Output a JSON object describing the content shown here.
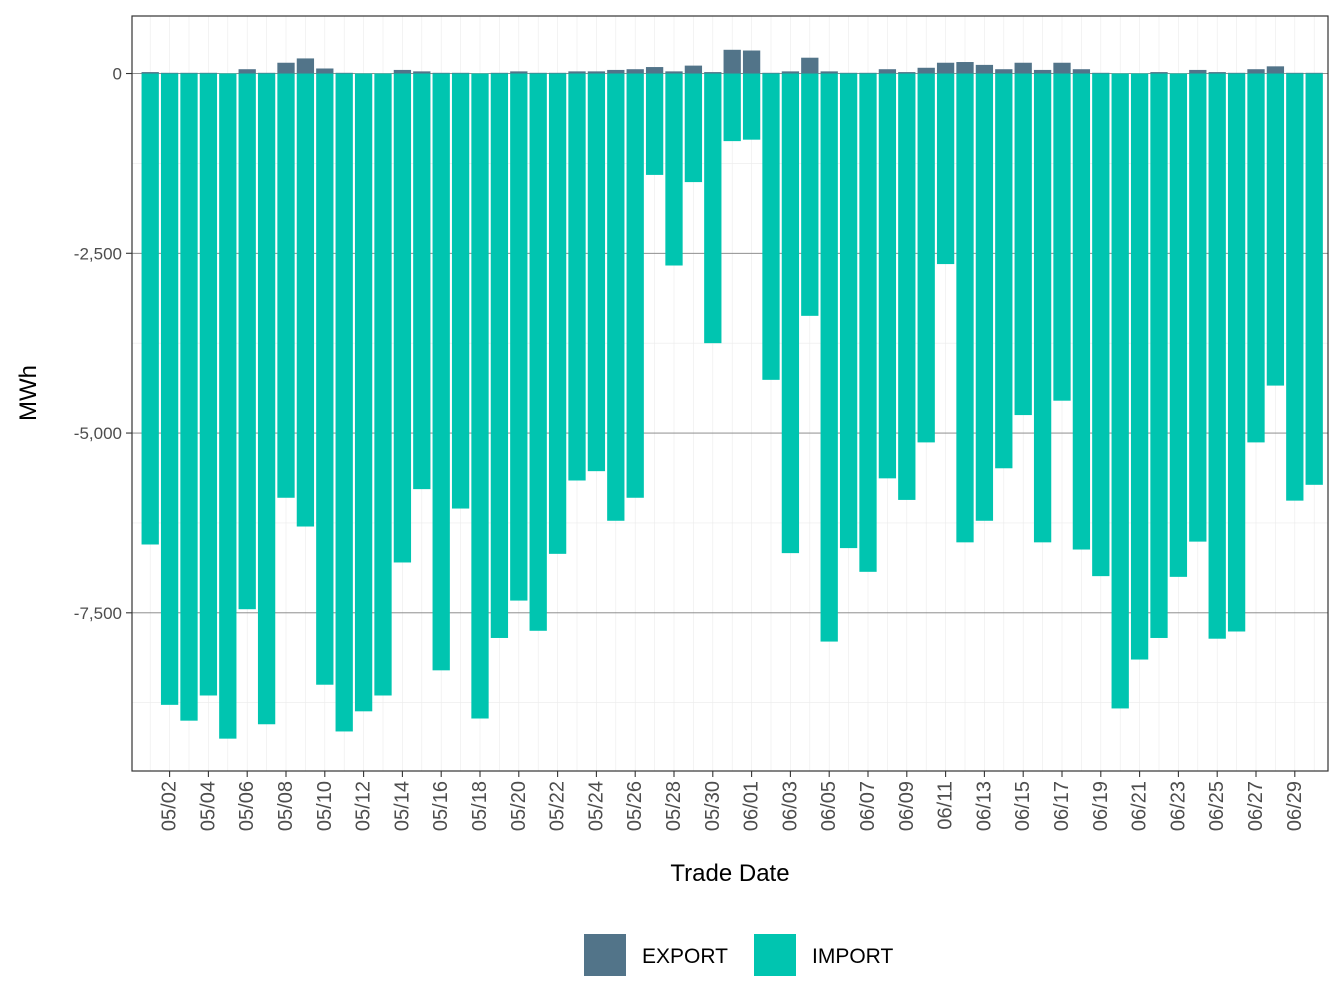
{
  "chart_data": {
    "type": "bar",
    "stacked": true,
    "title": "",
    "xlabel": "Trade Date",
    "ylabel": "MWh",
    "ylim": [
      -9700,
      800
    ],
    "yticks": [
      0,
      -2500,
      -5000,
      -7500
    ],
    "ytick_labels": [
      "0",
      "-2,500",
      "-5,000",
      "-7,500"
    ],
    "grid": true,
    "legend_position": "bottom",
    "categories": [
      "05/01",
      "05/02",
      "05/03",
      "05/04",
      "05/05",
      "05/06",
      "05/07",
      "05/08",
      "05/09",
      "05/10",
      "05/11",
      "05/12",
      "05/13",
      "05/14",
      "05/15",
      "05/16",
      "05/17",
      "05/18",
      "05/19",
      "05/20",
      "05/21",
      "05/22",
      "05/23",
      "05/24",
      "05/25",
      "05/26",
      "05/27",
      "05/28",
      "05/29",
      "05/30",
      "05/31",
      "06/01",
      "06/02",
      "06/03",
      "06/04",
      "06/05",
      "06/06",
      "06/07",
      "06/08",
      "06/09",
      "06/10",
      "06/11",
      "06/12",
      "06/13",
      "06/14",
      "06/15",
      "06/16",
      "06/17",
      "06/18",
      "06/19",
      "06/20",
      "06/21",
      "06/22",
      "06/23",
      "06/24",
      "06/25",
      "06/26",
      "06/27",
      "06/28",
      "06/29",
      "06/30"
    ],
    "tick_labels": [
      "05/02",
      "05/04",
      "05/06",
      "05/08",
      "05/10",
      "05/12",
      "05/14",
      "05/16",
      "05/18",
      "05/20",
      "05/22",
      "05/24",
      "05/26",
      "05/28",
      "05/30",
      "06/01",
      "06/03",
      "06/05",
      "06/07",
      "06/09",
      "06/11",
      "06/13",
      "06/15",
      "06/17",
      "06/19",
      "06/21",
      "06/23",
      "06/25",
      "06/27",
      "06/29"
    ],
    "series": [
      {
        "name": "EXPORT",
        "color": "#527489",
        "values": [
          20,
          10,
          10,
          10,
          0,
          60,
          10,
          150,
          210,
          70,
          10,
          0,
          0,
          50,
          30,
          10,
          10,
          0,
          10,
          30,
          10,
          10,
          30,
          30,
          50,
          60,
          90,
          30,
          110,
          20,
          330,
          320,
          10,
          30,
          220,
          30,
          10,
          10,
          60,
          20,
          80,
          150,
          160,
          120,
          60,
          150,
          50,
          150,
          60,
          10,
          0,
          0,
          20,
          0,
          50,
          20,
          10,
          60,
          100,
          10,
          10
        ]
      },
      {
        "name": "IMPORT",
        "color": "#00C5B0",
        "values": [
          -6550,
          -8780,
          -9000,
          -8650,
          -9250,
          -7450,
          -9050,
          -5900,
          -6300,
          -8500,
          -9150,
          -8870,
          -8650,
          -6800,
          -5780,
          -8300,
          -6050,
          -8970,
          -7850,
          -7330,
          -7750,
          -6680,
          -5660,
          -5530,
          -6220,
          -5900,
          -1410,
          -2670,
          -1510,
          -3750,
          -940,
          -920,
          -4260,
          -6670,
          -3370,
          -7900,
          -6600,
          -6930,
          -5630,
          -5930,
          -5130,
          -2650,
          -6520,
          -6220,
          -5490,
          -4750,
          -6520,
          -4550,
          -6620,
          -6990,
          -8830,
          -8150,
          -7850,
          -7000,
          -6510,
          -7860,
          -7760,
          -5130,
          -4340,
          -5940,
          -5720
        ]
      }
    ]
  }
}
